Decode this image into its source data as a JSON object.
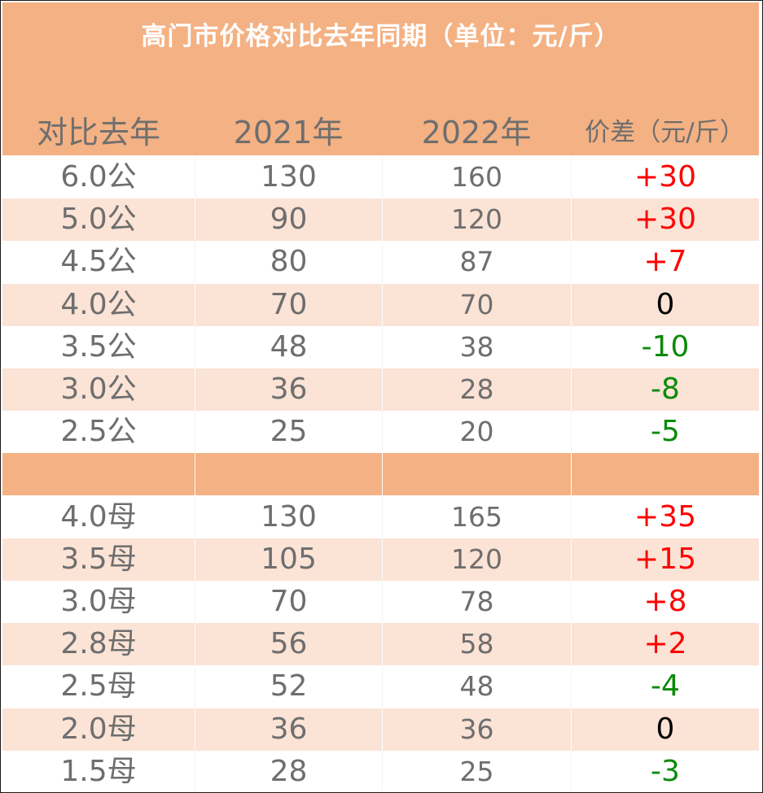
{
  "title": "高门市价格对比去年同期（单位：元/斤）",
  "headers": [
    "对比去年",
    "2021年",
    "2022年",
    "价差（元/斤）"
  ],
  "colors": {
    "header_bg": "#F4B183",
    "row_stripe": "#FBE3D6",
    "text_gray": "#6e6e6e",
    "increase": "#FF0000",
    "decrease": "#0A8A0A",
    "no_change": "#000000"
  },
  "rows": [
    {
      "spec": "6.0公",
      "y2021": "130",
      "y2022": "160",
      "diff": "+30",
      "trend": "up"
    },
    {
      "spec": "5.0公",
      "y2021": "90",
      "y2022": "120",
      "diff": "+30",
      "trend": "up"
    },
    {
      "spec": "4.5公",
      "y2021": "80",
      "y2022": "87",
      "diff": "+7",
      "trend": "up"
    },
    {
      "spec": "4.0公",
      "y2021": "70",
      "y2022": "70",
      "diff": "0",
      "trend": "zero"
    },
    {
      "spec": "3.5公",
      "y2021": "48",
      "y2022": "38",
      "diff": "-10",
      "trend": "down"
    },
    {
      "spec": "3.0公",
      "y2021": "36",
      "y2022": "28",
      "diff": "-8",
      "trend": "down"
    },
    {
      "spec": "2.5公",
      "y2021": "25",
      "y2022": "20",
      "diff": "-5",
      "trend": "down"
    },
    {
      "spec": "",
      "y2021": "",
      "y2022": "",
      "diff": "",
      "trend": "separator"
    },
    {
      "spec": "4.0母",
      "y2021": "130",
      "y2022": "165",
      "diff": "+35",
      "trend": "up"
    },
    {
      "spec": "3.5母",
      "y2021": "105",
      "y2022": "120",
      "diff": "+15",
      "trend": "up"
    },
    {
      "spec": "3.0母",
      "y2021": "70",
      "y2022": "78",
      "diff": "+8",
      "trend": "up"
    },
    {
      "spec": "2.8母",
      "y2021": "56",
      "y2022": "58",
      "diff": "+2",
      "trend": "up"
    },
    {
      "spec": "2.5母",
      "y2021": "52",
      "y2022": "48",
      "diff": "-4",
      "trend": "down"
    },
    {
      "spec": "2.0母",
      "y2021": "36",
      "y2022": "36",
      "diff": "0",
      "trend": "zero"
    },
    {
      "spec": "1.5母",
      "y2021": "28",
      "y2022": "25",
      "diff": "-3",
      "trend": "down"
    }
  ]
}
